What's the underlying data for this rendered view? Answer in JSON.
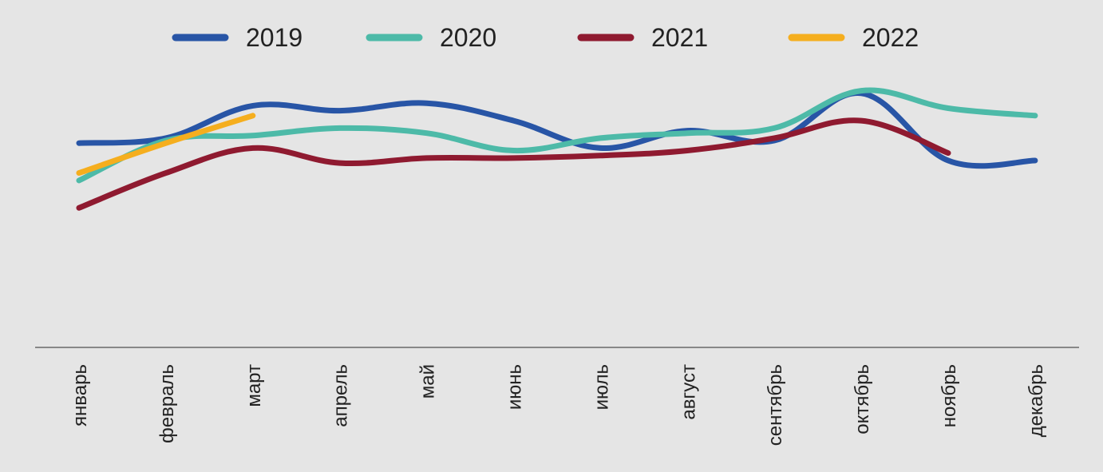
{
  "chart_data": {
    "type": "line",
    "title": "",
    "xlabel": "",
    "ylabel": "",
    "categories": [
      "январь",
      "февраль",
      "март",
      "апрель",
      "май",
      "июнь",
      "июль",
      "август",
      "сентябрь",
      "октябрь",
      "ноябрь",
      "декабрь"
    ],
    "ylim": [
      0,
      100
    ],
    "grid": false,
    "legend_position": "top",
    "series": [
      {
        "name": "2019",
        "color": "#2855a6",
        "values": [
          82,
          84,
          97,
          95,
          98,
          91,
          80,
          87,
          83,
          102,
          75,
          75
        ]
      },
      {
        "name": "2020",
        "color": "#4dbaa8",
        "values": [
          67,
          83,
          85,
          88,
          86,
          79,
          84,
          86,
          88,
          103,
          96,
          93
        ]
      },
      {
        "name": "2021",
        "color": "#8f1a30",
        "values": [
          56,
          70,
          80,
          74,
          76,
          76,
          77,
          79,
          84,
          91,
          78,
          null
        ]
      },
      {
        "name": "2022",
        "color": "#f5ae1e",
        "values": [
          70,
          82,
          93,
          null,
          null,
          null,
          null,
          null,
          null,
          null,
          null,
          null
        ]
      }
    ]
  }
}
